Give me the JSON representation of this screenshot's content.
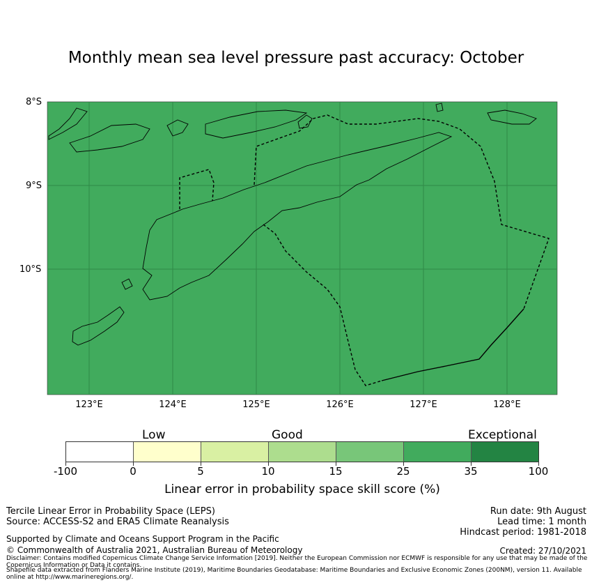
{
  "title": "Monthly mean sea level pressure past accuracy: October",
  "map": {
    "lat_labels": [
      "8°S",
      "9°S",
      "10°S"
    ],
    "lon_labels": [
      "123°E",
      "124°E",
      "125°E",
      "126°E",
      "127°E",
      "128°E"
    ],
    "fill_color": "#41ab5d",
    "grid_color": "#2f8a47",
    "land_outline_color": "#000000"
  },
  "colorbar": {
    "categories": {
      "low": "Low",
      "good": "Good",
      "exceptional": "Exceptional"
    },
    "ticks": [
      "-100",
      "0",
      "5",
      "10",
      "15",
      "25",
      "35",
      "100"
    ],
    "colors": [
      "#ffffff",
      "#ffffcc",
      "#d9f0a3",
      "#addd8e",
      "#78c679",
      "#41ab5d",
      "#238443"
    ],
    "label": "Linear error in probability space skill score (%)"
  },
  "footer": {
    "left_line1": "Tercile Linear Error in Probability Space (LEPS)",
    "left_line2": "Source: ACCESS-S2 and ERA5 Climate Reanalysis",
    "support": "Supported by Climate and Oceans Support Program in the Pacific",
    "copyright": "© Commonwealth of Australia 2021, Australian Bureau of Meteorology",
    "run_date": "Run date: 9th August",
    "lead_time": "Lead time: 1 month",
    "hindcast": "Hindcast period: 1981-2018",
    "created": "Created: 27/10/2021",
    "disclaimer": "Disclaimer: Contains modified Copernicus Climate Change Service Information [2019]. Neither the European Commission nor ECMWF is responsible for any use that may be made of the Copernicus Information or Data it contains.",
    "shapefile": "Shapefile data extracted from Flanders Marine Institute (2019), Maritime Boundaries Geodatabase: Maritime Boundaries and Exclusive Economic Zones (200NM), version 11. Available online at http://www.marineregions.org/."
  }
}
